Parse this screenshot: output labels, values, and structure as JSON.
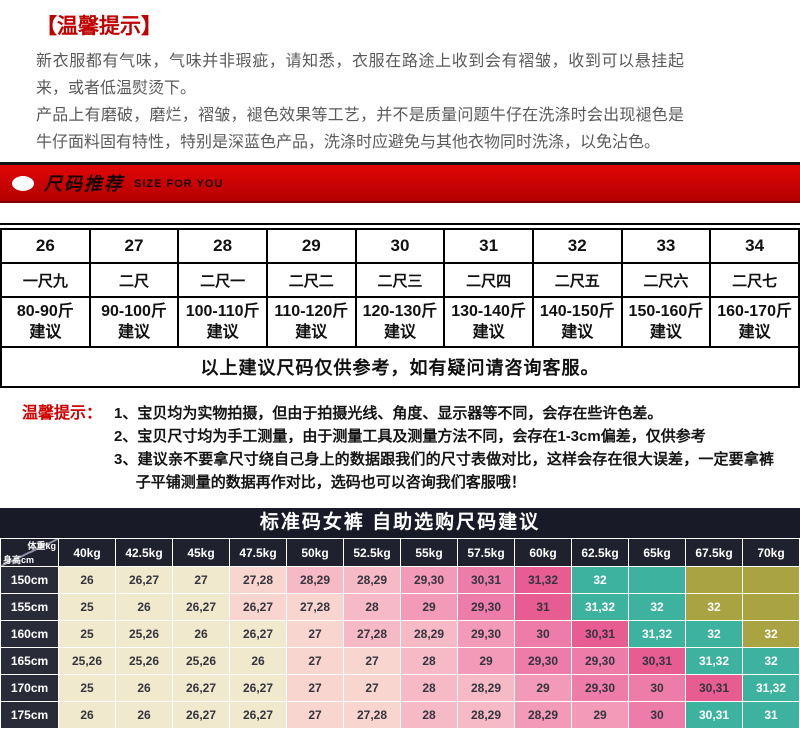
{
  "colors": {
    "accent_red": "#c00000",
    "banner_red": "#d20000",
    "chart_header_bg": "#20212e",
    "chart_title_bg": "#191a28"
  },
  "top_tips": {
    "title": "【温馨提示】",
    "para1": "新衣服都有气味，气味并非瑕疵，请知悉，衣服在路途上收到会有褶皱，收到可以悬挂起来，或者低温熨烫下。",
    "para2": "产品上有磨破，磨烂，褶皱，褪色效果等工艺，并不是质量问题牛仔在洗涤时会出现褪色是牛仔面料固有特性，特别是深蓝色产品，洗涤时应避免与其他衣物同时洗涤，以免沾色。"
  },
  "size_banner": {
    "title": "尺码推荐",
    "subtitle": "SIZE FOR YOU"
  },
  "size_table": {
    "sizes": [
      "26",
      "27",
      "28",
      "29",
      "30",
      "31",
      "32",
      "33",
      "34"
    ],
    "chi_sizes": [
      "一尺九",
      "二尺",
      "二尺一",
      "二尺二",
      "二尺三",
      "二尺四",
      "二尺五",
      "二尺六",
      "二尺七"
    ],
    "weights": [
      "80-90斤",
      "90-100斤",
      "100-110斤",
      "110-120斤",
      "120-130斤",
      "130-140斤",
      "140-150斤",
      "150-160斤",
      "160-170斤"
    ],
    "suggest_label": "建议",
    "footer": "以上建议尺码仅供参考，如有疑问请咨询客服。"
  },
  "mid_tips": {
    "label": "温馨提示：",
    "items": [
      "1、宝贝均为实物拍摄，但由于拍摄光线、角度、显示器等不同，会存在些许色差。",
      "2、宝贝尺寸均为手工测量，由于测量工具及测量方法不同，会存在1-3cm偏差，仅供参考",
      "3、建议亲不要拿尺寸绕自己身上的数据跟我们的尺寸表做对比，这样会存在很大误差，一定要拿裤子平铺测量的数据再作对比，选码也可以咨询我们客服哦！"
    ]
  },
  "size_chart": {
    "title": "标准码女裤  自助选购尺码建议",
    "corner": {
      "top": "体重kg",
      "bottom": "身高cm"
    },
    "weights": [
      "40kg",
      "42.5kg",
      "45kg",
      "47.5kg",
      "50kg",
      "52.5kg",
      "55kg",
      "57.5kg",
      "60kg",
      "62.5kg",
      "65kg",
      "67.5kg",
      "70kg"
    ],
    "palette": {
      "C": "#f1e9cd",
      "P1": "#f8d6cf",
      "P2": "#f6b9c6",
      "P3": "#f29ab8",
      "P4": "#ee7ca9",
      "P5": "#e75d92",
      "T": "#3db39f",
      "O": "#a9a441"
    },
    "rows": [
      {
        "height": "150cm",
        "values": [
          "26",
          "26,27",
          "27",
          "27,28",
          "28,29",
          "28,29",
          "29,30",
          "30,31",
          "31,32",
          "32",
          "",
          "",
          ""
        ],
        "tokens": [
          "C",
          "C",
          "C",
          "P1",
          "P2",
          "P2",
          "P3",
          "P4",
          "P5",
          "T",
          "T",
          "O",
          "O"
        ]
      },
      {
        "height": "155cm",
        "values": [
          "25",
          "26",
          "26,27",
          "26,27",
          "27,28",
          "28",
          "29",
          "29,30",
          "31",
          "31,32",
          "32",
          "32",
          ""
        ],
        "tokens": [
          "C",
          "C",
          "C",
          "P1",
          "P1",
          "P2",
          "P3",
          "P4",
          "P5",
          "T",
          "T",
          "O",
          "O"
        ]
      },
      {
        "height": "160cm",
        "values": [
          "25",
          "25,26",
          "26",
          "26,27",
          "27",
          "27,28",
          "28,29",
          "29,30",
          "30",
          "30,31",
          "31,32",
          "32",
          "32"
        ],
        "tokens": [
          "C",
          "C",
          "C",
          "C",
          "P1",
          "P2",
          "P2",
          "P3",
          "P4",
          "P5",
          "T",
          "T",
          "O"
        ]
      },
      {
        "height": "165cm",
        "values": [
          "25,26",
          "25,26",
          "25,26",
          "26",
          "27",
          "27",
          "28",
          "29",
          "29,30",
          "29,30",
          "30,31",
          "31,32",
          "32"
        ],
        "tokens": [
          "C",
          "C",
          "C",
          "C",
          "P1",
          "P1",
          "P2",
          "P3",
          "P4",
          "P4",
          "P5",
          "T",
          "T"
        ]
      },
      {
        "height": "170cm",
        "values": [
          "25",
          "26",
          "26,27",
          "26,27",
          "27",
          "27",
          "28",
          "28,29",
          "29",
          "29,30",
          "30",
          "30,31",
          "31,32"
        ],
        "tokens": [
          "C",
          "C",
          "C",
          "C",
          "P1",
          "P1",
          "P2",
          "P2",
          "P3",
          "P4",
          "P4",
          "P5",
          "T"
        ]
      },
      {
        "height": "175cm",
        "values": [
          "26",
          "26",
          "26,27",
          "26,27",
          "27",
          "27,28",
          "28",
          "28,29",
          "28,29",
          "29",
          "30",
          "30,31",
          "31"
        ],
        "tokens": [
          "C",
          "C",
          "C",
          "C",
          "P1",
          "P1",
          "P2",
          "P2",
          "P3",
          "P3",
          "P4",
          "T",
          "T"
        ]
      }
    ]
  }
}
